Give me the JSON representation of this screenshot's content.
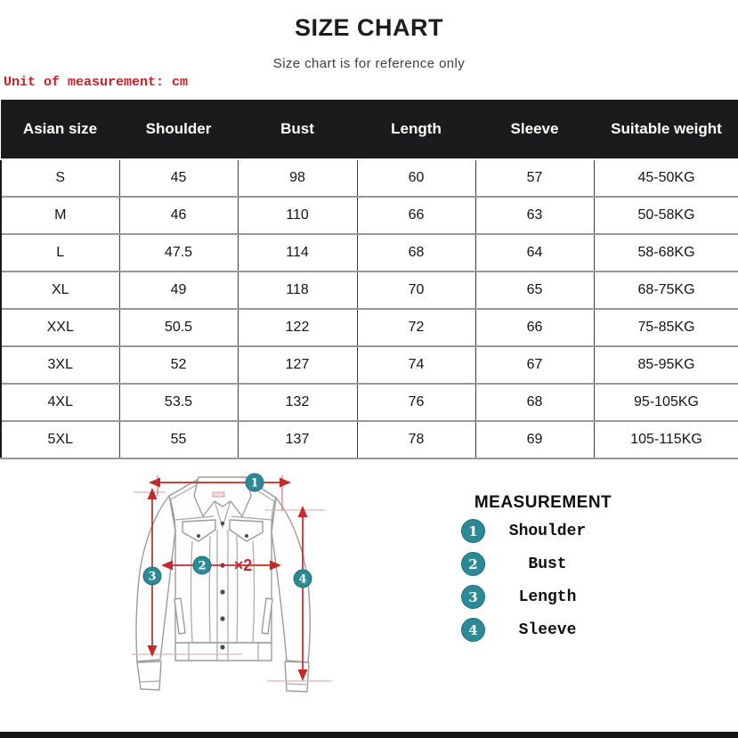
{
  "header": {
    "title": "SIZE CHART",
    "subtitle": "Size chart is for reference only",
    "unit_note": "Unit of measurement: cm"
  },
  "table": {
    "columns": [
      "Asian size",
      "Shoulder",
      "Bust",
      "Length",
      "Sleeve",
      "Suitable weight"
    ],
    "rows": [
      [
        "S",
        "45",
        "98",
        "60",
        "57",
        "45-50KG"
      ],
      [
        "M",
        "46",
        "110",
        "66",
        "63",
        "50-58KG"
      ],
      [
        "L",
        "47.5",
        "114",
        "68",
        "64",
        "58-68KG"
      ],
      [
        "XL",
        "49",
        "118",
        "70",
        "65",
        "68-75KG"
      ],
      [
        "XXL",
        "50.5",
        "122",
        "72",
        "66",
        "75-85KG"
      ],
      [
        "3XL",
        "52",
        "127",
        "74",
        "67",
        "85-95KG"
      ],
      [
        "4XL",
        "53.5",
        "132",
        "76",
        "68",
        "95-105KG"
      ],
      [
        "5XL",
        "55",
        "137",
        "78",
        "69",
        "105-115KG"
      ]
    ]
  },
  "legend": {
    "title": "MEASUREMENT",
    "items": [
      {
        "num": "1",
        "label": "Shoulder"
      },
      {
        "num": "2",
        "label": "Bust"
      },
      {
        "num": "3",
        "label": "Length"
      },
      {
        "num": "4",
        "label": "Sleeve"
      }
    ]
  },
  "diagram": {
    "marker1": "1",
    "marker2": "2",
    "marker3": "3",
    "marker4": "4",
    "multiplier": "×2"
  },
  "colors": {
    "accent_red": "#c22a2c",
    "teal": "#2b8a96",
    "table_header_bg": "#1b1b1d"
  }
}
